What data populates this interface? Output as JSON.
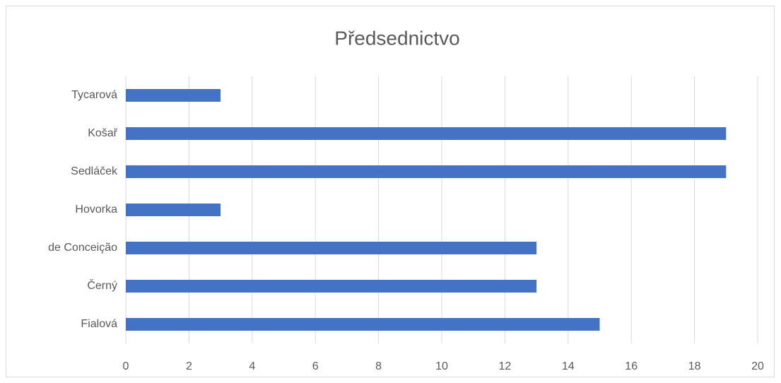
{
  "chart_data": {
    "type": "bar",
    "orientation": "horizontal",
    "title": "Předsednictvo",
    "categories": [
      "Fialová",
      "Černý",
      "de Conceição",
      "Hovorka",
      "Sedláček",
      "Košař",
      "Tycarová"
    ],
    "values": [
      15,
      13,
      13,
      3,
      19,
      19,
      3
    ],
    "color": "#4472c4",
    "xlim": [
      0,
      20
    ],
    "xticks": [
      0,
      2,
      4,
      6,
      8,
      10,
      12,
      14,
      16,
      18,
      20
    ],
    "grid": true
  }
}
